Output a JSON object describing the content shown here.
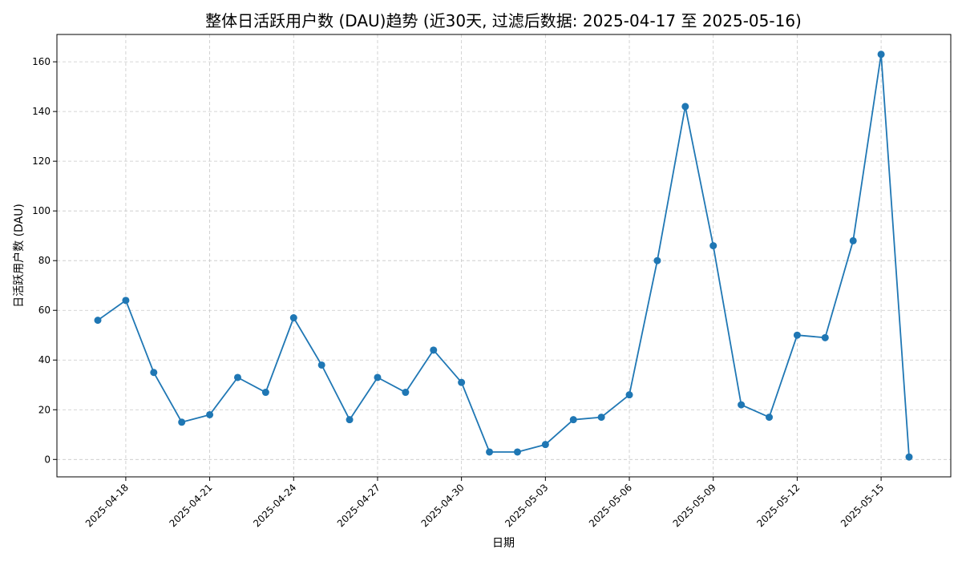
{
  "chart_data": {
    "type": "line",
    "title": "整体日活跃用户数 (DAU)趋势 (近30天, 过滤后数据: 2025-04-17 至 2025-05-16)",
    "xlabel": "日期",
    "ylabel": "日活跃用户数 (DAU)",
    "x_range": [
      "2025-04-17",
      "2025-05-16"
    ],
    "ylim": [
      -7,
      171
    ],
    "y_ticks": [
      0,
      20,
      40,
      60,
      80,
      100,
      120,
      140,
      160
    ],
    "x_ticks": [
      "2025-04-18",
      "2025-04-21",
      "2025-04-24",
      "2025-04-27",
      "2025-04-30",
      "2025-05-03",
      "2025-05-06",
      "2025-05-09",
      "2025-05-12",
      "2025-05-15"
    ],
    "grid": true,
    "color": "#1f77b4",
    "series": [
      {
        "x": [
          "2025-04-17",
          "2025-04-18",
          "2025-04-19",
          "2025-04-20",
          "2025-04-21",
          "2025-04-22",
          "2025-04-23",
          "2025-04-24",
          "2025-04-25",
          "2025-04-26",
          "2025-04-27",
          "2025-04-28",
          "2025-04-29",
          "2025-04-30",
          "2025-05-01",
          "2025-05-02",
          "2025-05-03",
          "2025-05-04",
          "2025-05-05",
          "2025-05-06",
          "2025-05-07",
          "2025-05-08",
          "2025-05-09",
          "2025-05-10",
          "2025-05-11",
          "2025-05-12",
          "2025-05-13",
          "2025-05-14",
          "2025-05-15",
          "2025-05-16"
        ],
        "y": [
          56,
          64,
          35,
          15,
          18,
          33,
          27,
          57,
          38,
          16,
          33,
          27,
          44,
          31,
          3,
          3,
          6,
          16,
          17,
          26,
          80,
          142,
          86,
          22,
          17,
          50,
          49,
          88,
          163,
          1
        ]
      }
    ]
  }
}
